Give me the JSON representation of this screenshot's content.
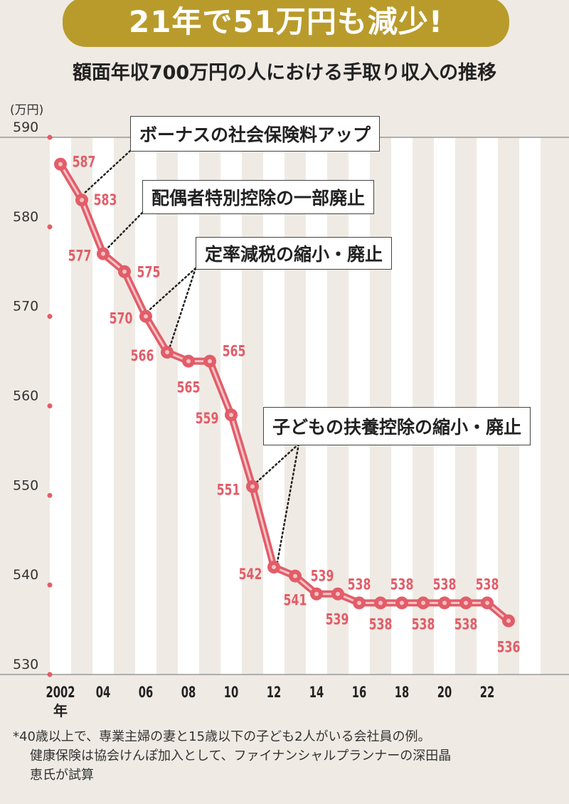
{
  "banner": "21年で51万円も減少!",
  "chart_data": {
    "type": "line",
    "title": "額面年収700万円の人における手取り収入の推移",
    "ylabel": "(万円)",
    "xlabel": "年",
    "ylim": [
      530,
      590
    ],
    "yticks": [
      "530",
      "540",
      "550",
      "560",
      "570",
      "580",
      "590"
    ],
    "xticks": [
      "2002",
      "04",
      "06",
      "08",
      "10",
      "12",
      "14",
      "16",
      "18",
      "20",
      "22"
    ],
    "x": [
      2002,
      2003,
      2004,
      2005,
      2006,
      2007,
      2008,
      2009,
      2010,
      2011,
      2012,
      2013,
      2014,
      2015,
      2016,
      2017,
      2018,
      2019,
      2020,
      2021,
      2022,
      2023
    ],
    "values": [
      587,
      583,
      577,
      575,
      570,
      566,
      565,
      565,
      559,
      551,
      542,
      541,
      539,
      539,
      538,
      538,
      538,
      538,
      538,
      538,
      538,
      536
    ],
    "color": "#e25d68",
    "grid": "alternating vertical stripes",
    "annotations": [
      "ボーナスの社会保険料アップ",
      "配偶者特別控除の一部廃止",
      "定率減税の縮小・廃止",
      "子どもの扶養控除の縮小・廃止"
    ]
  },
  "footnote": [
    "*40歳以上で、専業主婦の妻と15歳以下の子ども2人がいる会社員の例。",
    "健康保険は協会けんぽ加入として、ファイナンシャルプランナーの深田晶",
    "恵氏が試算"
  ]
}
